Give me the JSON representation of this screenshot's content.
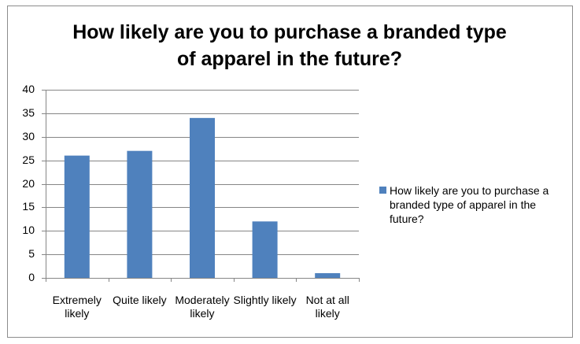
{
  "chart_data": {
    "type": "bar",
    "title": "How likely are you to purchase a branded type of apparel in the future?",
    "categories": [
      "Extremely likely",
      "Quite likely",
      "Moderately likely",
      "Slightly likely",
      "Not at all likely"
    ],
    "series": [
      {
        "name": "How likely are you to purchase a branded type of apparel in the future?",
        "color": "#4f81bd",
        "values": [
          26,
          27,
          34,
          12,
          1
        ]
      }
    ],
    "ylim": [
      0,
      40
    ],
    "yticks": [
      0,
      5,
      10,
      15,
      20,
      25,
      30,
      35,
      40
    ],
    "grid": true,
    "legend": "right"
  }
}
